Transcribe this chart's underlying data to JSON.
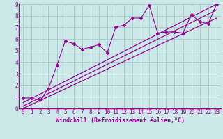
{
  "bg_color": "#cce8e8",
  "line_color": "#990099",
  "grid_color": "#aacccc",
  "xlabel": "Windchill (Refroidissement éolien,°C)",
  "xlim": [
    -0.5,
    23.5
  ],
  "ylim": [
    0,
    9
  ],
  "xticks": [
    0,
    1,
    2,
    3,
    4,
    5,
    6,
    7,
    8,
    9,
    10,
    11,
    12,
    13,
    14,
    15,
    16,
    17,
    18,
    19,
    20,
    21,
    22,
    23
  ],
  "yticks": [
    0,
    1,
    2,
    3,
    4,
    5,
    6,
    7,
    8,
    9
  ],
  "scatter_x": [
    0,
    1,
    2,
    3,
    4,
    5,
    6,
    7,
    8,
    9,
    10,
    11,
    12,
    13,
    14,
    15,
    16,
    17,
    18,
    19,
    20,
    21,
    22,
    23
  ],
  "scatter_y": [
    0.9,
    0.9,
    0.7,
    1.7,
    3.7,
    5.8,
    5.6,
    5.1,
    5.3,
    5.5,
    4.8,
    7.0,
    7.2,
    7.8,
    7.8,
    8.9,
    6.5,
    6.6,
    6.6,
    6.5,
    8.1,
    7.5,
    7.3,
    9.0
  ],
  "line1_x": [
    0,
    23
  ],
  "line1_y": [
    0.5,
    9.0
  ],
  "line2_x": [
    0,
    23
  ],
  "line2_y": [
    0.2,
    8.5
  ],
  "line3_x": [
    0,
    23
  ],
  "line3_y": [
    0.0,
    7.8
  ],
  "tick_fontsize": 5.5,
  "xlabel_fontsize": 6.0
}
